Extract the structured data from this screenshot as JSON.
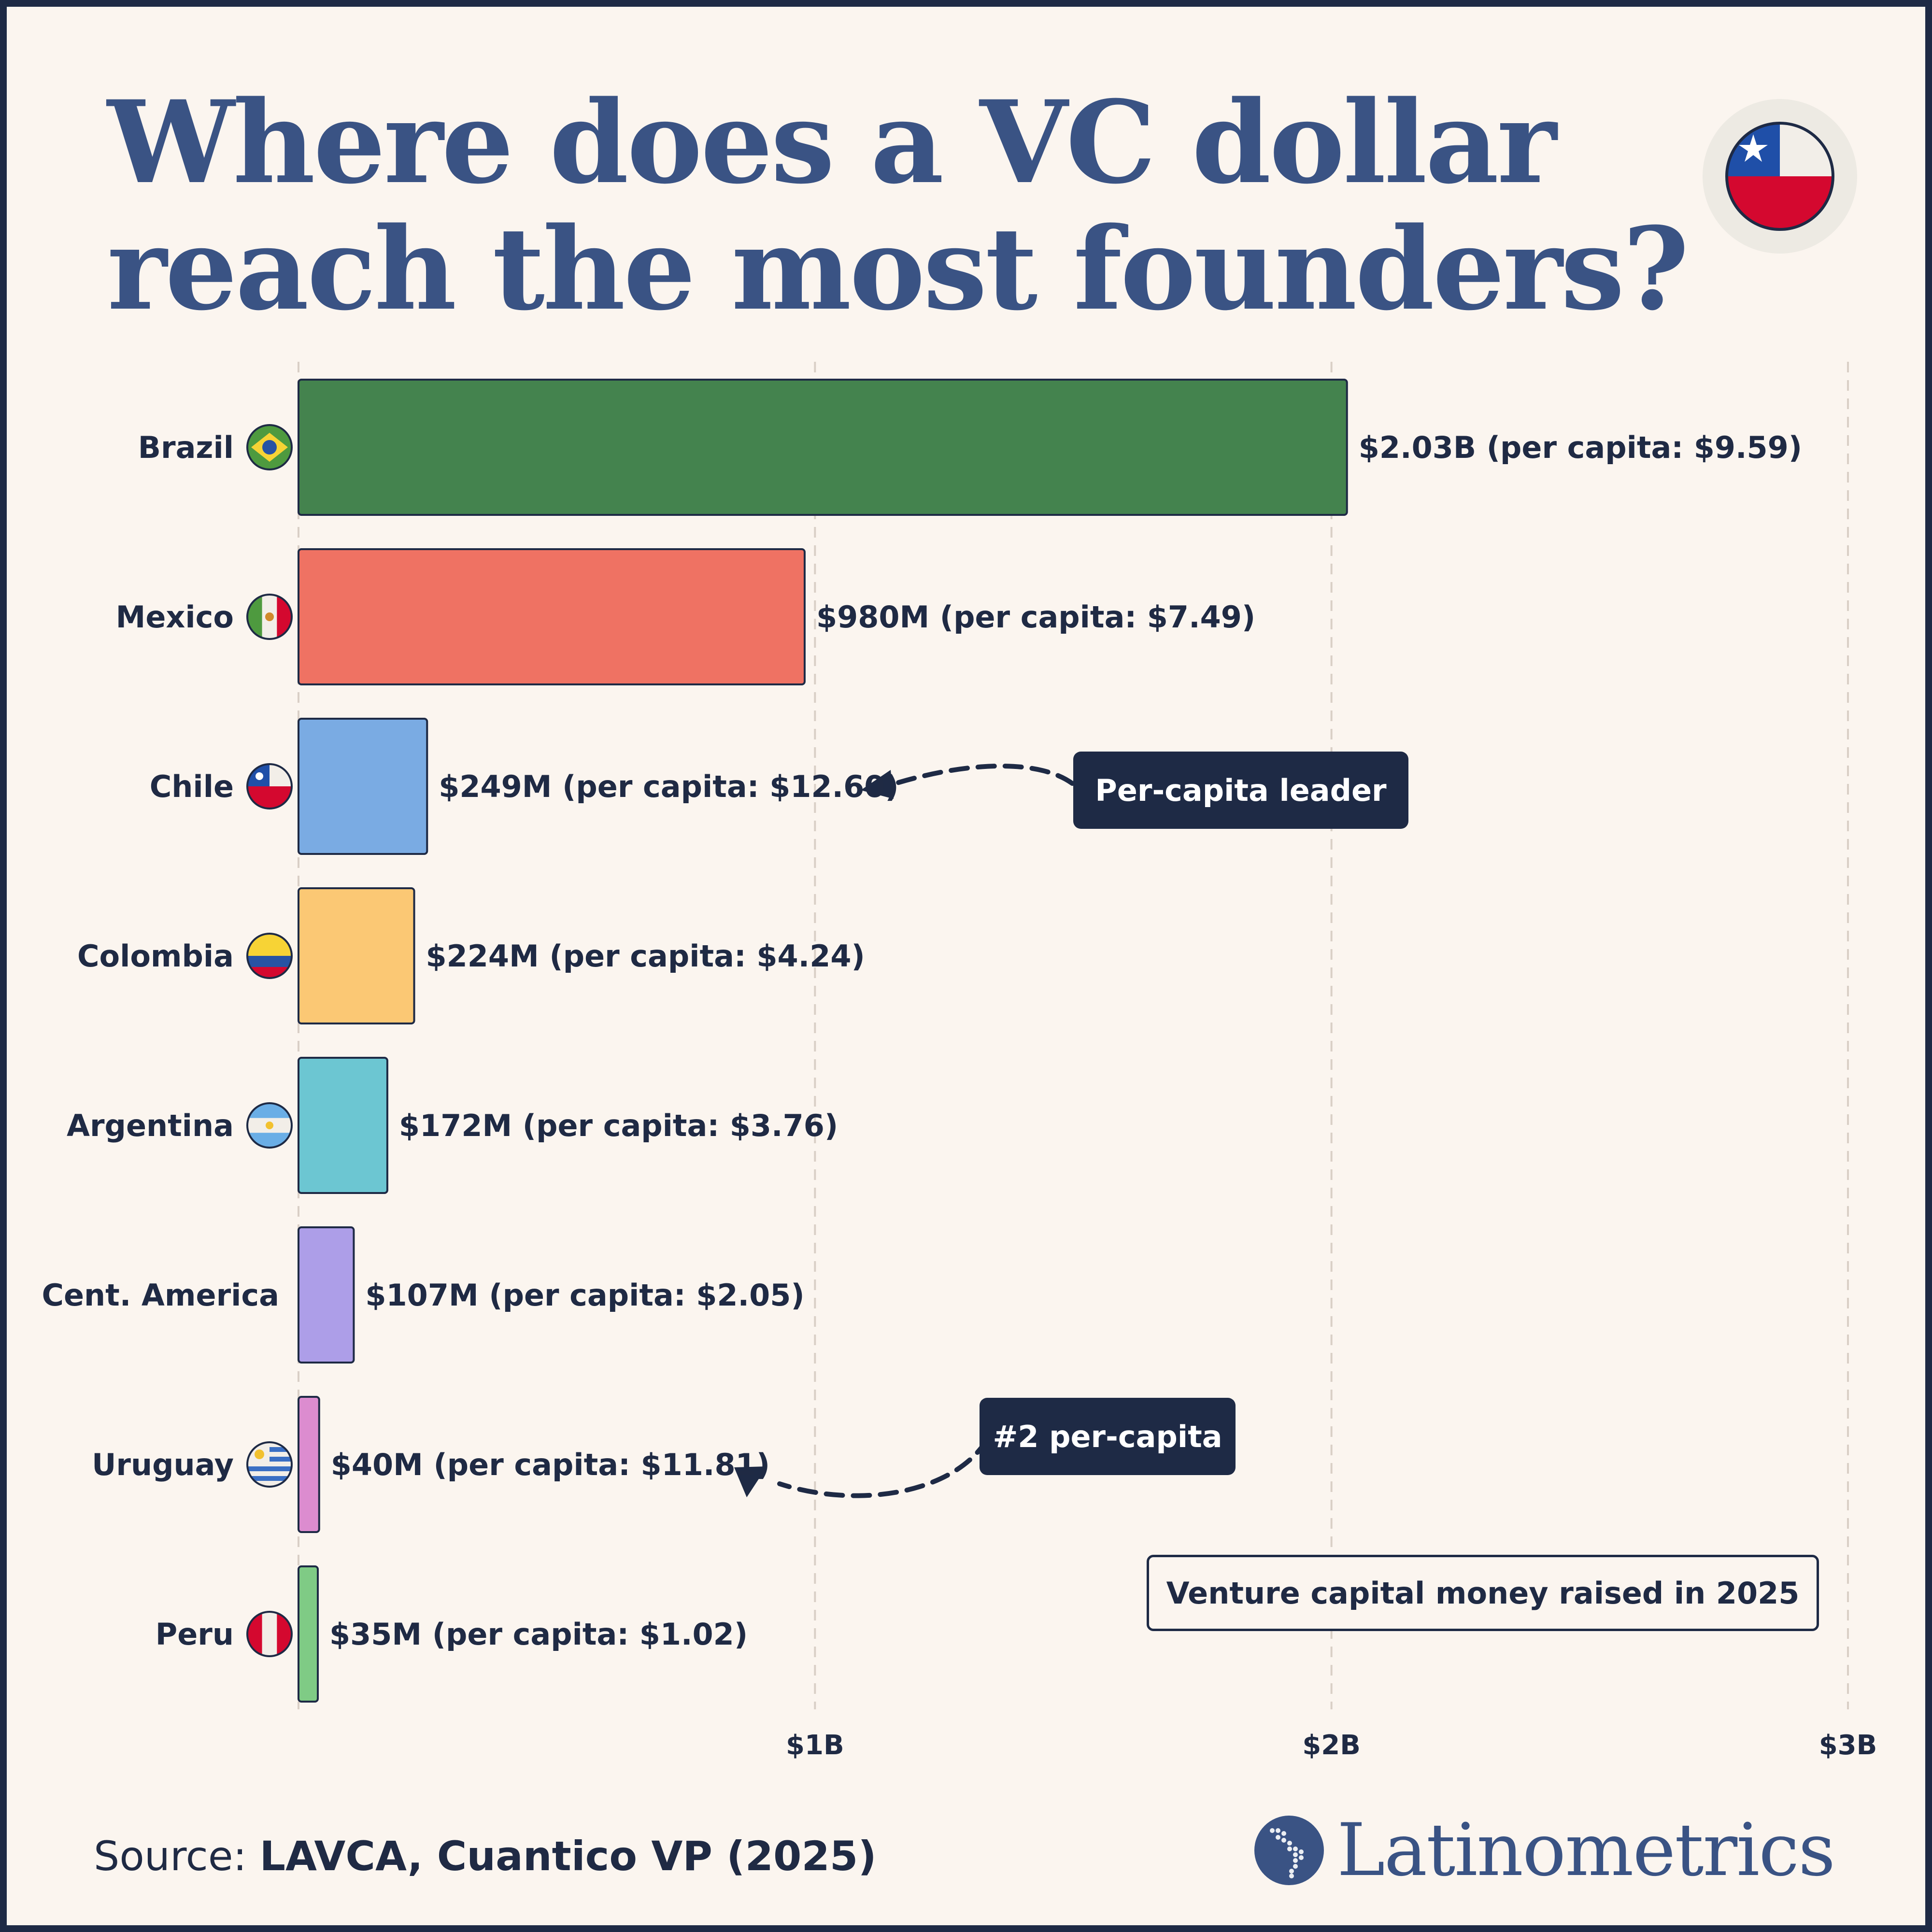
{
  "title_lines": [
    "Where does a VC dollar",
    "reach the most founders?"
  ],
  "legend_box": "Venture capital money raised in 2025",
  "annotations": [
    {
      "text": "Per-capita leader",
      "target": "Chile"
    },
    {
      "text": "#2 per-capita",
      "target": "Uruguay"
    }
  ],
  "source": {
    "prefix": "Source: ",
    "text": "LAVCA, Cuantico VP (2025)"
  },
  "brand": {
    "name": "Latinometrics"
  },
  "colors": {
    "title": "#3a5384",
    "text": "#1f2a44",
    "background": "#fbf5ef",
    "border": "#1e2a45"
  },
  "chart_data": {
    "type": "bar",
    "orientation": "horizontal",
    "title": "Where does a VC dollar reach the most founders?",
    "xlabel": "",
    "ylabel": "",
    "xlim": [
      0,
      3000
    ],
    "x_unit": "$M",
    "ticks": [
      {
        "value": 1000,
        "label": "$1B"
      },
      {
        "value": 2000,
        "label": "$2B"
      },
      {
        "value": 3000,
        "label": "$3B"
      }
    ],
    "grid": "vertical dashed",
    "categories": [
      "Brazil",
      "Mexico",
      "Chile",
      "Colombia",
      "Argentina",
      "Cent. America",
      "Uruguay",
      "Peru"
    ],
    "values": [
      2030,
      980,
      249,
      224,
      172,
      107,
      40,
      35
    ],
    "per_capita": [
      9.59,
      7.49,
      12.6,
      4.24,
      3.76,
      2.05,
      11.81,
      1.02
    ],
    "value_labels": [
      "$2.03B (per capita: $9.59)",
      "$980M (per capita: $7.49)",
      "$249M (per capita: $12.60)",
      "$224M (per capita: $4.24)",
      "$172M (per capita: $3.76)",
      "$107M (per capita: $2.05)",
      "$40M (per capita: $11.81)",
      "$35M (per capita: $1.02)"
    ],
    "bar_colors": [
      "#44834e",
      "#ef7263",
      "#7aabe3",
      "#fbc874",
      "#6cc6d2",
      "#ad9ee8",
      "#dc8ccf",
      "#7fcb85"
    ],
    "flags": [
      "brazil-flag",
      "mexico-flag",
      "chile-flag",
      "colombia-flag",
      "argentina-flag",
      "",
      "uruguay-flag",
      "peru-flag"
    ]
  }
}
